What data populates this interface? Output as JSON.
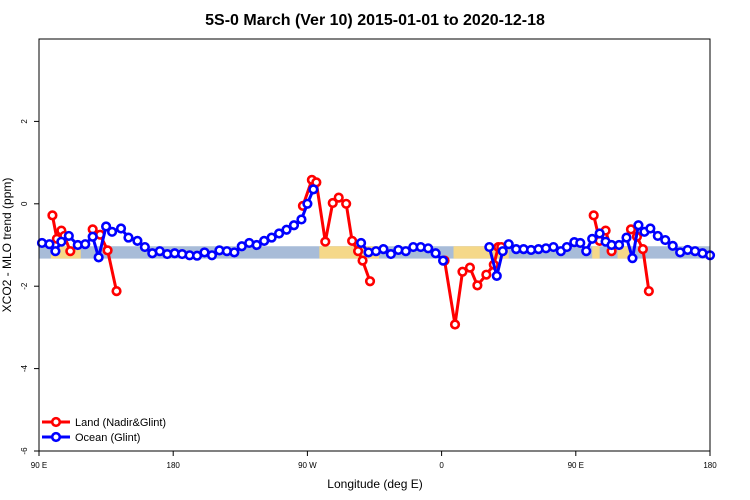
{
  "chart_data": {
    "type": "line",
    "title": "5S-0 March (Ver 10)   2015-01-01 to 2020-12-18",
    "xlabel": "Longitude (deg E)",
    "ylabel": "XCO2 - MLO trend (ppm)",
    "xlim": [
      90,
      540
    ],
    "ylim": [
      -6,
      4
    ],
    "x_ticks": [
      {
        "value": 90,
        "label": "90 E"
      },
      {
        "value": 180,
        "label": "180"
      },
      {
        "value": 270,
        "label": "90 W"
      },
      {
        "value": 360,
        "label": "0"
      },
      {
        "value": 450,
        "label": "90 E"
      },
      {
        "value": 540,
        "label": "180"
      }
    ],
    "y_ticks": [
      {
        "value": -6,
        "label": "-6"
      },
      {
        "value": -4,
        "label": "-4"
      },
      {
        "value": -2,
        "label": "-2"
      },
      {
        "value": 0,
        "label": "0"
      },
      {
        "value": 2,
        "label": "2"
      }
    ],
    "land_mask_band": {
      "y_range": [
        -1.33,
        -1.03
      ],
      "ocean_color": "#a8bcd8",
      "land_color": "#f5d889",
      "land_segments": [
        [
          98,
          118
        ],
        [
          278,
          318
        ],
        [
          368,
          405
        ],
        [
          461,
          466
        ],
        [
          478,
          486
        ]
      ]
    },
    "legend_position": "bottom-left",
    "series": [
      {
        "name": "Land (Nadir&Glint)",
        "color": "#ff0000",
        "segments": [
          {
            "x": [
              99,
              102,
              105,
              107,
              111
            ],
            "y": [
              -0.28,
              -0.85,
              -0.65,
              -0.78,
              -1.15
            ]
          },
          {
            "x": [
              126,
              131,
              136,
              142
            ],
            "y": [
              -0.62,
              -0.75,
              -1.13,
              -2.12
            ]
          },
          {
            "x": [
              267,
              273,
              276,
              282,
              287,
              291,
              296,
              300,
              304,
              307,
              312
            ],
            "y": [
              -0.05,
              0.58,
              0.52,
              -0.92,
              0.02,
              0.15,
              0.0,
              -0.9,
              -1.15,
              -1.38,
              -1.88
            ]
          },
          {
            "x": [
              362,
              369,
              374,
              379,
              384,
              390,
              395,
              398,
              400
            ],
            "y": [
              -1.38,
              -2.93,
              -1.65,
              -1.55,
              -1.98,
              -1.72,
              -1.48,
              -1.05,
              -1.05
            ]
          },
          {
            "x": [
              462,
              466,
              470,
              474
            ],
            "y": [
              -0.28,
              -0.9,
              -0.65,
              -1.15
            ]
          },
          {
            "x": [
              487,
              491,
              495,
              499
            ],
            "y": [
              -0.62,
              -0.8,
              -1.1,
              -2.12
            ]
          }
        ]
      },
      {
        "name": "Ocean (Glint)",
        "color": "#0000ff",
        "segments": [
          {
            "x": [
              92,
              97,
              101,
              105,
              110,
              116,
              121,
              126,
              130,
              135,
              139,
              145,
              150,
              156,
              161,
              166,
              171,
              176,
              181,
              186,
              191,
              196,
              201,
              206,
              211,
              216,
              221,
              226,
              231,
              236,
              241,
              246,
              251,
              256,
              261,
              266,
              270,
              274
            ],
            "y": [
              -0.95,
              -0.98,
              -1.15,
              -0.92,
              -0.78,
              -1.0,
              -0.98,
              -0.8,
              -1.3,
              -0.55,
              -0.68,
              -0.6,
              -0.82,
              -0.9,
              -1.05,
              -1.2,
              -1.15,
              -1.22,
              -1.2,
              -1.22,
              -1.25,
              -1.26,
              -1.18,
              -1.25,
              -1.13,
              -1.15,
              -1.18,
              -1.03,
              -0.95,
              -1.0,
              -0.9,
              -0.82,
              -0.72,
              -0.63,
              -0.52,
              -0.38,
              0.0,
              0.35
            ]
          },
          {
            "x": [
              306,
              311,
              316,
              321,
              326,
              331,
              336,
              341,
              346,
              351,
              356,
              361
            ],
            "y": [
              -0.95,
              -1.18,
              -1.15,
              -1.1,
              -1.22,
              -1.12,
              -1.15,
              -1.05,
              -1.05,
              -1.08,
              -1.2,
              -1.38
            ]
          },
          {
            "x": [
              392,
              397,
              401,
              405,
              410,
              415,
              420,
              425,
              430,
              435,
              440,
              444,
              449,
              453,
              457,
              461,
              466,
              470,
              474,
              479,
              484,
              488,
              492,
              496,
              500,
              505,
              510,
              515,
              520,
              525,
              530,
              535,
              540
            ],
            "y": [
              -1.05,
              -1.75,
              -1.15,
              -0.98,
              -1.1,
              -1.1,
              -1.12,
              -1.1,
              -1.08,
              -1.05,
              -1.15,
              -1.05,
              -0.93,
              -0.95,
              -1.15,
              -0.85,
              -0.72,
              -0.92,
              -1.0,
              -1.0,
              -0.82,
              -1.32,
              -0.52,
              -0.68,
              -0.6,
              -0.78,
              -0.88,
              -1.02,
              -1.18,
              -1.12,
              -1.15,
              -1.2,
              -1.25
            ]
          }
        ]
      }
    ]
  }
}
